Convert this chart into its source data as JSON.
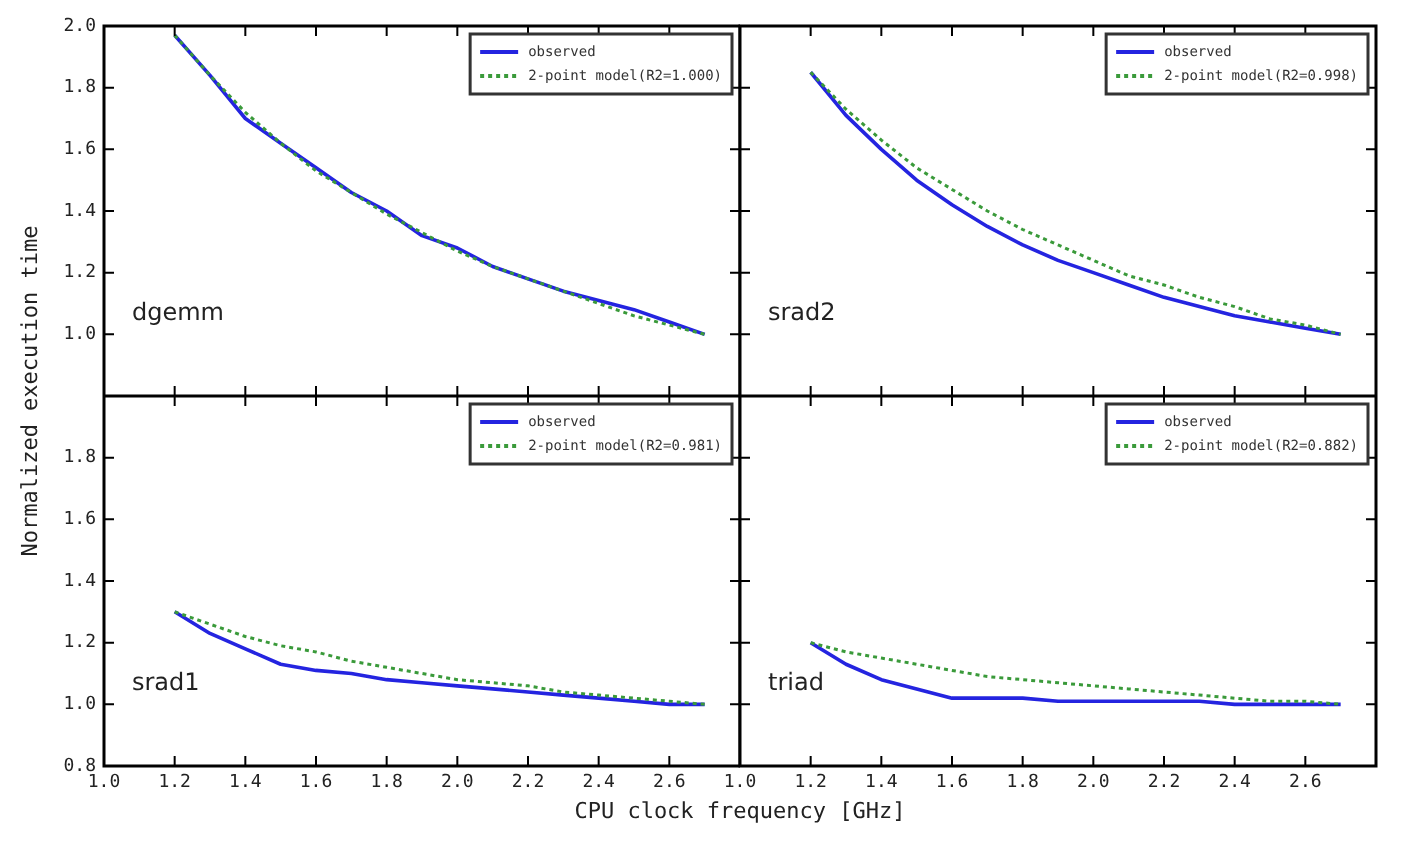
{
  "chart_data": [
    {
      "type": "line",
      "ylabel": "Normalized execution time",
      "annotations": [
        "dgemm"
      ],
      "legend": "top right",
      "marker": "none",
      "grid": false,
      "tick_labels": "y",
      "xlim": [
        1.0,
        2.8
      ],
      "xticks": [
        1.0,
        1.2,
        1.4,
        1.6,
        1.8,
        2.0,
        2.2,
        2.4,
        2.6
      ],
      "ylim": [
        0.8,
        2.0
      ],
      "yticks": [
        {
          "value": 0.8,
          "label": null
        },
        {
          "value": 1.0,
          "label": "1.0"
        },
        {
          "value": 1.2,
          "label": "1.2"
        },
        {
          "value": 1.4,
          "label": "1.4"
        },
        {
          "value": 1.6,
          "label": "1.6"
        },
        {
          "value": 1.8,
          "label": "1.8"
        },
        {
          "value": 2.0,
          "label": "2.0"
        }
      ],
      "x": [
        1.2,
        1.3,
        1.4,
        1.5,
        1.6,
        1.7,
        1.8,
        1.9,
        2.0,
        2.1,
        2.2,
        2.3,
        2.4,
        2.5,
        2.6,
        2.7
      ],
      "series": [
        {
          "name": "observed",
          "color": "#2424e0",
          "line_style": "solid",
          "values": [
            1.97,
            1.84,
            1.7,
            1.62,
            1.54,
            1.46,
            1.4,
            1.32,
            1.28,
            1.22,
            1.18,
            1.14,
            1.11,
            1.08,
            1.04,
            1.0
          ]
        },
        {
          "name": "2-point model(R2=1.000)",
          "color": "#3a9a3a",
          "line_style": "dotted",
          "values": [
            1.97,
            1.84,
            1.72,
            1.62,
            1.53,
            1.46,
            1.39,
            1.33,
            1.27,
            1.22,
            1.18,
            1.14,
            1.1,
            1.06,
            1.03,
            1.0
          ]
        }
      ]
    },
    {
      "type": "line",
      "annotations": [
        "srad2"
      ],
      "legend": "top right",
      "marker": "none",
      "grid": false,
      "tick_labels": false,
      "xlim": [
        1.0,
        2.8
      ],
      "xticks": [
        1.0,
        1.2,
        1.4,
        1.6,
        1.8,
        2.0,
        2.2,
        2.4,
        2.6
      ],
      "ylim": [
        0.8,
        2.0
      ],
      "yticks": [
        0.8,
        1.0,
        1.2,
        1.4,
        1.6,
        1.8,
        2.0
      ],
      "x": [
        1.2,
        1.3,
        1.4,
        1.5,
        1.6,
        1.7,
        1.8,
        1.9,
        2.0,
        2.1,
        2.2,
        2.3,
        2.4,
        2.5,
        2.6,
        2.7
      ],
      "series": [
        {
          "name": "observed",
          "color": "#2424e0",
          "line_style": "solid",
          "values": [
            1.85,
            1.71,
            1.6,
            1.5,
            1.42,
            1.35,
            1.29,
            1.24,
            1.2,
            1.16,
            1.12,
            1.09,
            1.06,
            1.04,
            1.02,
            1.0
          ]
        },
        {
          "name": "2-point model(R2=0.998)",
          "color": "#3a9a3a",
          "line_style": "dotted",
          "values": [
            1.85,
            1.73,
            1.63,
            1.54,
            1.47,
            1.4,
            1.34,
            1.29,
            1.24,
            1.19,
            1.16,
            1.12,
            1.09,
            1.05,
            1.03,
            1.0
          ]
        }
      ]
    },
    {
      "type": "line",
      "xlabel": "CPU clock frequency [GHz]",
      "annotations": [
        "srad1"
      ],
      "legend": "top right",
      "marker": "none",
      "grid": false,
      "xlim": [
        1.0,
        2.8
      ],
      "xticks": [
        {
          "value": 1.0,
          "label": "1.0"
        },
        {
          "value": 1.2,
          "label": "1.2"
        },
        {
          "value": 1.4,
          "label": "1.4"
        },
        {
          "value": 1.6,
          "label": "1.6"
        },
        {
          "value": 1.8,
          "label": "1.8"
        },
        {
          "value": 2.0,
          "label": "2.0"
        },
        {
          "value": 2.2,
          "label": "2.2"
        },
        {
          "value": 2.4,
          "label": "2.4"
        },
        {
          "value": 2.6,
          "label": "2.6"
        }
      ],
      "ylim": [
        0.8,
        2.0
      ],
      "yticks": [
        {
          "value": 0.8,
          "label": "0.8"
        },
        {
          "value": 1.0,
          "label": "1.0"
        },
        {
          "value": 1.2,
          "label": "1.2"
        },
        {
          "value": 1.4,
          "label": "1.4"
        },
        {
          "value": 1.6,
          "label": "1.6"
        },
        {
          "value": 1.8,
          "label": "1.8"
        },
        {
          "value": 2.0,
          "label": null
        }
      ],
      "x": [
        1.2,
        1.3,
        1.4,
        1.5,
        1.6,
        1.7,
        1.8,
        1.9,
        2.0,
        2.1,
        2.2,
        2.3,
        2.4,
        2.5,
        2.6,
        2.7
      ],
      "series": [
        {
          "name": "observed",
          "color": "#2424e0",
          "line_style": "solid",
          "values": [
            1.3,
            1.23,
            1.18,
            1.13,
            1.11,
            1.1,
            1.08,
            1.07,
            1.06,
            1.05,
            1.04,
            1.03,
            1.02,
            1.01,
            1.0,
            1.0
          ]
        },
        {
          "name": "2-point model(R2=0.981)",
          "color": "#3a9a3a",
          "line_style": "dotted",
          "values": [
            1.3,
            1.26,
            1.22,
            1.19,
            1.17,
            1.14,
            1.12,
            1.1,
            1.08,
            1.07,
            1.06,
            1.04,
            1.03,
            1.02,
            1.01,
            1.0
          ]
        }
      ]
    },
    {
      "type": "line",
      "annotations": [
        "triad"
      ],
      "legend": "top right",
      "marker": "none",
      "grid": false,
      "tick_labels": "x",
      "xlim": [
        1.0,
        2.8
      ],
      "xticks": [
        {
          "value": 1.0,
          "label": "1.0"
        },
        {
          "value": 1.2,
          "label": "1.2"
        },
        {
          "value": 1.4,
          "label": "1.4"
        },
        {
          "value": 1.6,
          "label": "1.6"
        },
        {
          "value": 1.8,
          "label": "1.8"
        },
        {
          "value": 2.0,
          "label": "2.0"
        },
        {
          "value": 2.2,
          "label": "2.2"
        },
        {
          "value": 2.4,
          "label": "2.4"
        },
        {
          "value": 2.6,
          "label": "2.6"
        }
      ],
      "ylim": [
        0.8,
        2.0
      ],
      "yticks": [
        0.8,
        1.0,
        1.2,
        1.4,
        1.6,
        1.8,
        2.0
      ],
      "x": [
        1.2,
        1.3,
        1.4,
        1.5,
        1.6,
        1.7,
        1.8,
        1.9,
        2.0,
        2.1,
        2.2,
        2.3,
        2.4,
        2.5,
        2.6,
        2.7
      ],
      "series": [
        {
          "name": "observed",
          "color": "#2424e0",
          "line_style": "solid",
          "values": [
            1.2,
            1.13,
            1.08,
            1.05,
            1.02,
            1.02,
            1.02,
            1.01,
            1.01,
            1.01,
            1.01,
            1.01,
            1.0,
            1.0,
            1.0,
            1.0
          ]
        },
        {
          "name": "2-point model(R2=0.882)",
          "color": "#3a9a3a",
          "line_style": "dotted",
          "values": [
            1.2,
            1.17,
            1.15,
            1.13,
            1.11,
            1.09,
            1.08,
            1.07,
            1.06,
            1.05,
            1.04,
            1.03,
            1.02,
            1.01,
            1.01,
            1.0
          ]
        }
      ]
    }
  ]
}
